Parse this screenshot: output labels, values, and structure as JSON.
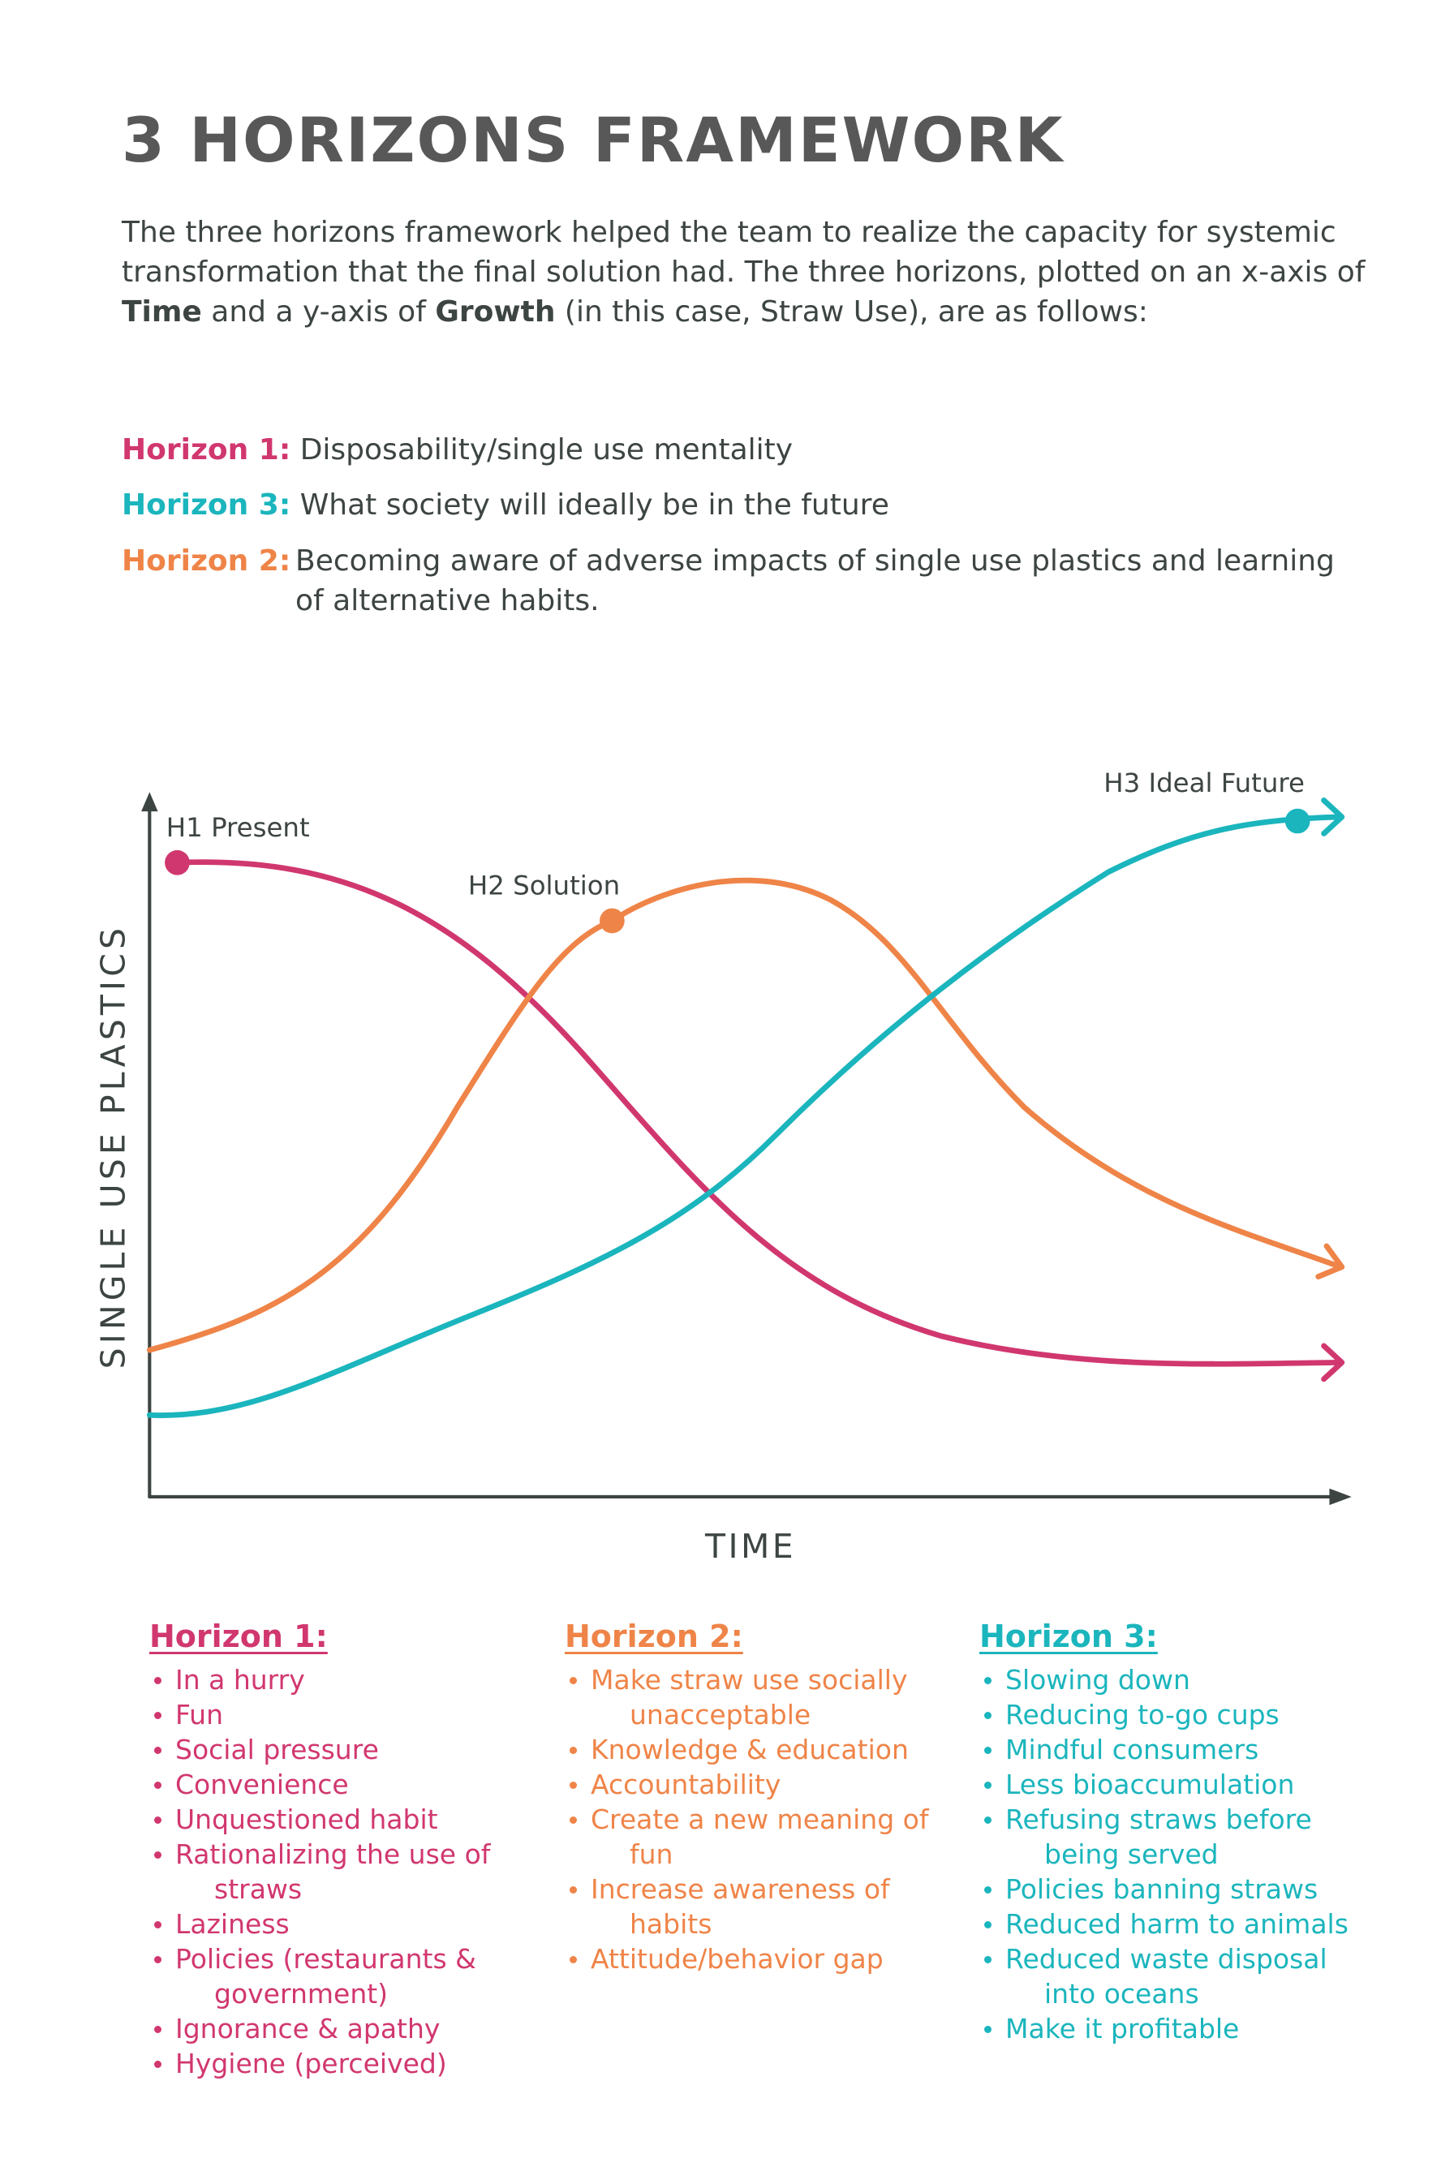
{
  "header": {
    "title": "3 HORIZONS FRAMEWORK"
  },
  "intro": [
    "The three horizons framework helped the team to realize the capacity for systemic transformation that the final solution had. The three horizons, plotted on an x-axis of ",
    "Time",
    " and a y-axis of ",
    "Growth",
    " (in this case, Straw Use), are as follows:"
  ],
  "horizons": [
    {
      "label": "Horizon 1:",
      "text": "Disposability/single use mentality"
    },
    {
      "label": "Horizon 3:",
      "text": "What society will ideally be in the future"
    },
    {
      "label": "Horizon 2:",
      "text": "Becoming aware of adverse impacts of single use plastics and learning of alternative habits."
    }
  ],
  "diagram": {
    "y_label": "SINGLE USE PLASTICS",
    "x_label": "TIME",
    "annotations": [
      "H1 Present",
      "H2 Solution",
      "H3 Ideal Future"
    ]
  },
  "lists": [
    {
      "heading": "Horizon 1:",
      "items": [
        "In a hurry",
        "Fun",
        "Social pressure",
        "Convenience",
        "Unquestioned habit",
        "Rationalizing the use of straws",
        "Laziness",
        "Policies (restaurants & government)",
        "Ignorance & apathy",
        "Hygiene (perceived)"
      ]
    },
    {
      "heading": "Horizon 2:",
      "items": [
        "Make straw use socially unacceptable",
        "Knowledge & education",
        "Accountability",
        "Create a new meaning of fun",
        "Increase awareness of habits",
        "Attitude/behavior gap"
      ]
    },
    {
      "heading": "Horizon 3:",
      "items": [
        "Slowing down",
        "Reducing to-go cups",
        "Mindful consumers",
        "Less bioaccumulation",
        "Refusing straws before being served",
        "Policies banning straws",
        "Reduced harm to animals",
        "Reduced waste disposal into oceans",
        "Make it profitable"
      ]
    }
  ]
}
